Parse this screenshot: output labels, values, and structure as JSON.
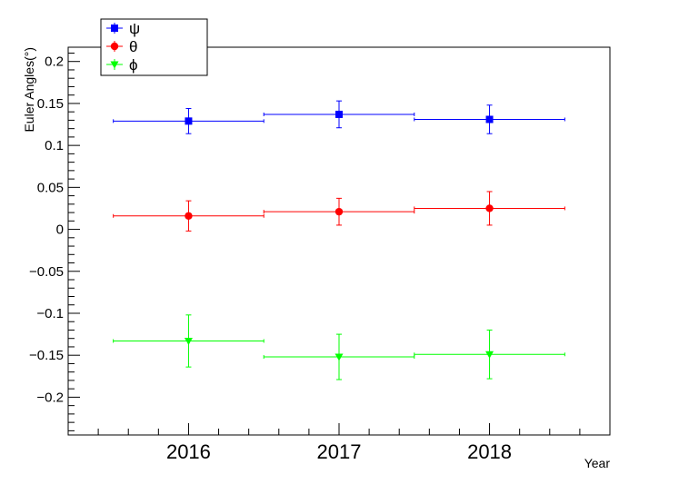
{
  "chart_data": {
    "type": "scatter",
    "title": "",
    "xlabel": "Year",
    "ylabel": "Euler Angles(°)",
    "categories": [
      "2016",
      "2017",
      "2018"
    ],
    "xlim": [
      2015.2,
      2018.8
    ],
    "ylim": [
      -0.245,
      0.217
    ],
    "grid": false,
    "legend_position": "top-left",
    "y_ticks": [
      -0.2,
      -0.15,
      -0.1,
      -0.05,
      0,
      0.05,
      0.1,
      0.15,
      0.2
    ],
    "y_tick_labels": [
      "−0.2",
      "−0.15",
      "−0.1",
      "−0.05",
      "0",
      "0.05",
      "0.1",
      "0.15",
      "0.2"
    ],
    "series": [
      {
        "name": "ψ",
        "color": "#0000ff",
        "marker": "square",
        "x": [
          2016,
          2017,
          2018
        ],
        "x_range": [
          [
            2015.5,
            2016.5
          ],
          [
            2016.5,
            2017.5
          ],
          [
            2017.5,
            2018.5
          ]
        ],
        "y": [
          0.129,
          0.137,
          0.131
        ],
        "yerr": [
          0.015,
          0.016,
          0.017
        ]
      },
      {
        "name": "θ",
        "color": "#ff0000",
        "marker": "circle",
        "x": [
          2016,
          2017,
          2018
        ],
        "x_range": [
          [
            2015.5,
            2016.5
          ],
          [
            2016.5,
            2017.5
          ],
          [
            2017.5,
            2018.5
          ]
        ],
        "y": [
          0.016,
          0.021,
          0.025
        ],
        "yerr": [
          0.018,
          0.016,
          0.02
        ]
      },
      {
        "name": "ϕ",
        "color": "#00ff00",
        "marker": "triangle-down",
        "x": [
          2016,
          2017,
          2018
        ],
        "x_range": [
          [
            2015.5,
            2016.5
          ],
          [
            2016.5,
            2017.5
          ],
          [
            2017.5,
            2018.5
          ]
        ],
        "y": [
          -0.133,
          -0.152,
          -0.149
        ],
        "yerr": [
          0.031,
          0.027,
          0.029
        ]
      }
    ]
  }
}
